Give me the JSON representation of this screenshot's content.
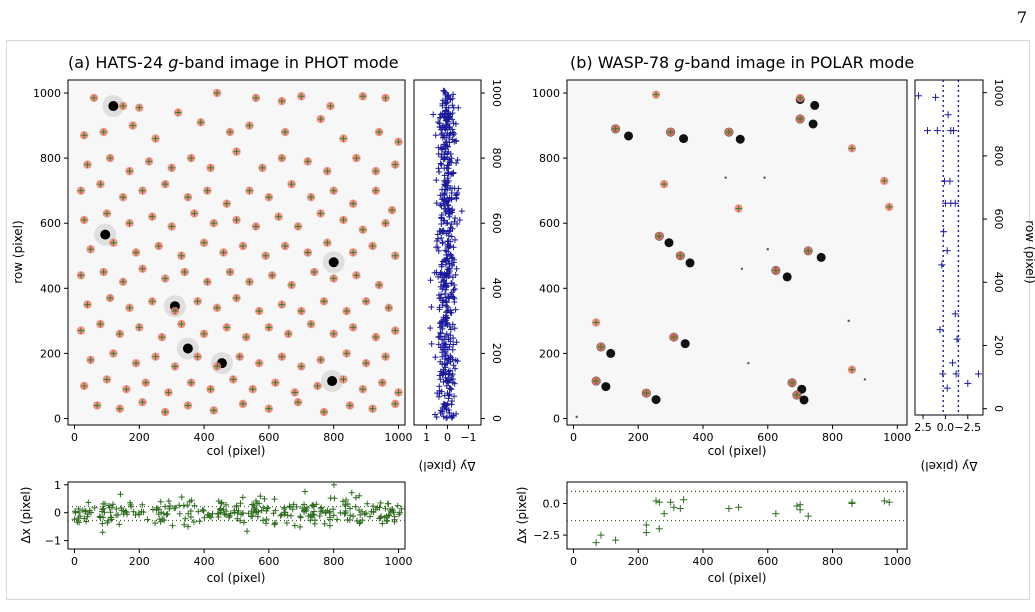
{
  "page_number": "7",
  "caption_fragment": "",
  "panels": {
    "a": {
      "title_prefix": "(a) HATS-24 ",
      "title_band": "g",
      "title_suffix": "-band image in PHOT mode"
    },
    "b": {
      "title_prefix": "(b) WASP-78 ",
      "title_band": "g",
      "title_suffix": "-band image in POLAR mode"
    }
  },
  "colors": {
    "image_background": "#f7f7f7",
    "star_core": "#000000",
    "aperture_circle": "#f08070",
    "detection_cross": "#2e7d32",
    "dy_marker": "#1a1a9a",
    "dx_marker": "#2e6b1f"
  },
  "chart_data": [
    {
      "id": "a-image",
      "type": "scatter",
      "title": "(a) HATS-24 g-band image in PHOT mode",
      "xlabel": "col (pixel)",
      "ylabel": "row (pixel)",
      "xlim": [
        -20,
        1020
      ],
      "ylim": [
        -20,
        1040
      ],
      "xticks": [
        "0",
        "200",
        "400",
        "600",
        "800",
        "1000"
      ],
      "yticks": [
        "0",
        "200",
        "400",
        "600",
        "800",
        "1000"
      ],
      "bright_stars": [
        [
          120,
          960
        ],
        [
          795,
          115
        ],
        [
          350,
          215
        ],
        [
          95,
          565
        ],
        [
          800,
          480
        ],
        [
          455,
          170
        ],
        [
          310,
          345
        ]
      ],
      "stars": [
        [
          60,
          985
        ],
        [
          150,
          960
        ],
        [
          200,
          955
        ],
        [
          320,
          940
        ],
        [
          440,
          1000
        ],
        [
          560,
          985
        ],
        [
          640,
          975
        ],
        [
          700,
          990
        ],
        [
          790,
          960
        ],
        [
          890,
          990
        ],
        [
          960,
          985
        ],
        [
          30,
          870
        ],
        [
          90,
          880
        ],
        [
          180,
          900
        ],
        [
          250,
          860
        ],
        [
          390,
          910
        ],
        [
          480,
          880
        ],
        [
          540,
          900
        ],
        [
          650,
          880
        ],
        [
          760,
          920
        ],
        [
          830,
          860
        ],
        [
          940,
          880
        ],
        [
          1000,
          850
        ],
        [
          40,
          780
        ],
        [
          110,
          800
        ],
        [
          170,
          760
        ],
        [
          230,
          790
        ],
        [
          300,
          770
        ],
        [
          360,
          800
        ],
        [
          420,
          770
        ],
        [
          500,
          820
        ],
        [
          580,
          770
        ],
        [
          640,
          800
        ],
        [
          720,
          790
        ],
        [
          780,
          760
        ],
        [
          870,
          800
        ],
        [
          930,
          760
        ],
        [
          990,
          780
        ],
        [
          20,
          700
        ],
        [
          80,
          720
        ],
        [
          150,
          680
        ],
        [
          210,
          700
        ],
        [
          280,
          720
        ],
        [
          350,
          680
        ],
        [
          410,
          700
        ],
        [
          470,
          660
        ],
        [
          540,
          700
        ],
        [
          600,
          680
        ],
        [
          670,
          720
        ],
        [
          730,
          680
        ],
        [
          800,
          700
        ],
        [
          860,
          660
        ],
        [
          930,
          700
        ],
        [
          980,
          640
        ],
        [
          30,
          610
        ],
        [
          100,
          630
        ],
        [
          170,
          600
        ],
        [
          240,
          620
        ],
        [
          300,
          590
        ],
        [
          370,
          630
        ],
        [
          430,
          600
        ],
        [
          500,
          610
        ],
        [
          560,
          590
        ],
        [
          630,
          620
        ],
        [
          690,
          590
        ],
        [
          760,
          630
        ],
        [
          830,
          610
        ],
        [
          890,
          580
        ],
        [
          960,
          600
        ],
        [
          50,
          520
        ],
        [
          120,
          540
        ],
        [
          190,
          510
        ],
        [
          260,
          530
        ],
        [
          330,
          500
        ],
        [
          400,
          540
        ],
        [
          460,
          510
        ],
        [
          520,
          530
        ],
        [
          590,
          500
        ],
        [
          650,
          530
        ],
        [
          720,
          510
        ],
        [
          780,
          540
        ],
        [
          860,
          510
        ],
        [
          920,
          530
        ],
        [
          990,
          500
        ],
        [
          20,
          440
        ],
        [
          90,
          450
        ],
        [
          150,
          420
        ],
        [
          210,
          460
        ],
        [
          280,
          430
        ],
        [
          340,
          450
        ],
        [
          410,
          420
        ],
        [
          480,
          450
        ],
        [
          540,
          420
        ],
        [
          610,
          440
        ],
        [
          670,
          410
        ],
        [
          740,
          450
        ],
        [
          800,
          430
        ],
        [
          870,
          440
        ],
        [
          940,
          410
        ],
        [
          40,
          350
        ],
        [
          110,
          370
        ],
        [
          170,
          340
        ],
        [
          240,
          360
        ],
        [
          310,
          330
        ],
        [
          380,
          360
        ],
        [
          440,
          340
        ],
        [
          500,
          370
        ],
        [
          570,
          330
        ],
        [
          640,
          350
        ],
        [
          700,
          330
        ],
        [
          770,
          360
        ],
        [
          840,
          330
        ],
        [
          900,
          360
        ],
        [
          970,
          340
        ],
        [
          20,
          270
        ],
        [
          80,
          290
        ],
        [
          140,
          260
        ],
        [
          200,
          280
        ],
        [
          270,
          250
        ],
        [
          330,
          290
        ],
        [
          400,
          260
        ],
        [
          470,
          280
        ],
        [
          530,
          250
        ],
        [
          600,
          280
        ],
        [
          660,
          260
        ],
        [
          730,
          290
        ],
        [
          800,
          260
        ],
        [
          860,
          280
        ],
        [
          930,
          250
        ],
        [
          990,
          270
        ],
        [
          50,
          180
        ],
        [
          120,
          200
        ],
        [
          190,
          170
        ],
        [
          250,
          190
        ],
        [
          310,
          160
        ],
        [
          380,
          190
        ],
        [
          440,
          160
        ],
        [
          510,
          190
        ],
        [
          570,
          170
        ],
        [
          640,
          190
        ],
        [
          700,
          160
        ],
        [
          760,
          180
        ],
        [
          840,
          200
        ],
        [
          900,
          170
        ],
        [
          960,
          190
        ],
        [
          30,
          100
        ],
        [
          100,
          120
        ],
        [
          160,
          90
        ],
        [
          220,
          110
        ],
        [
          290,
          80
        ],
        [
          360,
          110
        ],
        [
          420,
          90
        ],
        [
          490,
          120
        ],
        [
          550,
          90
        ],
        [
          620,
          110
        ],
        [
          680,
          80
        ],
        [
          750,
          100
        ],
        [
          830,
          120
        ],
        [
          890,
          90
        ],
        [
          950,
          110
        ],
        [
          1000,
          80
        ],
        [
          70,
          40
        ],
        [
          140,
          30
        ],
        [
          210,
          50
        ],
        [
          280,
          20
        ],
        [
          350,
          40
        ],
        [
          430,
          25
        ],
        [
          520,
          45
        ],
        [
          600,
          30
        ],
        [
          690,
          50
        ],
        [
          770,
          20
        ],
        [
          850,
          40
        ],
        [
          920,
          30
        ],
        [
          990,
          45
        ]
      ]
    },
    {
      "id": "a-dy",
      "type": "scatter",
      "xlabel": "Δy (pixel)",
      "xlim": [
        1.6,
        -1.6
      ],
      "ylim": [
        -20,
        1040
      ],
      "xticks": [
        "1",
        "0",
        "−1"
      ],
      "yticks": [
        "0",
        "200",
        "400",
        "600",
        "800",
        "1000"
      ]
    },
    {
      "id": "a-dx",
      "type": "scatter",
      "xlabel": "col (pixel)",
      "ylabel": "Δx (pixel)",
      "xlim": [
        -20,
        1020
      ],
      "ylim": [
        -1.3,
        1.1
      ],
      "xticks": [
        "0",
        "200",
        "400",
        "600",
        "800",
        "1000"
      ],
      "yticks": [
        "−1",
        "0",
        "1"
      ],
      "hlines": [
        -0.28,
        0.22
      ]
    },
    {
      "id": "b-image",
      "type": "scatter",
      "title": "(b) WASP-78 g-band image in POLAR mode",
      "xlabel": "col (pixel)",
      "ylabel": "row (pixel)",
      "xlim": [
        -20,
        1030
      ],
      "ylim": [
        -20,
        1040
      ],
      "xticks": [
        "0",
        "200",
        "400",
        "600",
        "800",
        "1000"
      ],
      "yticks": [
        "0",
        "200",
        "400",
        "600",
        "800",
        "1000"
      ],
      "pairs": [
        [
          [
            130,
            890
          ],
          [
            170,
            868
          ]
        ],
        [
          [
            300,
            880
          ],
          [
            340,
            860
          ]
        ],
        [
          [
            480,
            880
          ],
          [
            515,
            858
          ]
        ],
        [
          [
            725,
            515
          ],
          [
            765,
            495
          ]
        ],
        [
          [
            310,
            250
          ],
          [
            345,
            230
          ]
        ],
        [
          [
            700,
            980
          ],
          [
            745,
            962
          ]
        ],
        [
          [
            700,
            920
          ],
          [
            740,
            905
          ]
        ],
        [
          [
            265,
            560
          ],
          [
            295,
            540
          ]
        ],
        [
          [
            330,
            500
          ],
          [
            360,
            478
          ]
        ],
        [
          [
            625,
            455
          ],
          [
            660,
            435
          ]
        ],
        [
          [
            85,
            220
          ],
          [
            115,
            200
          ]
        ],
        [
          [
            70,
            115
          ],
          [
            100,
            98
          ]
        ],
        [
          [
            225,
            78
          ],
          [
            255,
            58
          ]
        ],
        [
          [
            675,
            110
          ],
          [
            705,
            90
          ]
        ],
        [
          [
            690,
            72
          ],
          [
            712,
            57
          ]
        ]
      ],
      "marked": [
        [
          255,
          995
        ],
        [
          700,
          985
        ],
        [
          700,
          920
        ],
        [
          860,
          830
        ],
        [
          960,
          730
        ],
        [
          975,
          650
        ],
        [
          510,
          645
        ],
        [
          265,
          560
        ],
        [
          330,
          500
        ],
        [
          625,
          455
        ],
        [
          725,
          515
        ],
        [
          300,
          880
        ],
        [
          130,
          890
        ],
        [
          480,
          880
        ],
        [
          310,
          250
        ],
        [
          70,
          295
        ],
        [
          85,
          220
        ],
        [
          70,
          115
        ],
        [
          225,
          78
        ],
        [
          675,
          110
        ],
        [
          690,
          72
        ],
        [
          860,
          150
        ],
        [
          280,
          720
        ]
      ],
      "faint": [
        [
          10,
          5
        ],
        [
          590,
          740
        ],
        [
          600,
          520
        ],
        [
          520,
          460
        ],
        [
          850,
          300
        ],
        [
          470,
          740
        ],
        [
          900,
          120
        ],
        [
          540,
          170
        ]
      ]
    },
    {
      "id": "b-dy",
      "type": "scatter",
      "xlabel": "Δy (pixel)",
      "xlim": [
        3.4,
        -4.2
      ],
      "ylim": [
        -20,
        1040
      ],
      "xticks": [
        "2.5",
        "0.0",
        "−2.5"
      ],
      "yticks": [
        "0",
        "200",
        "400",
        "600",
        "800",
        "1000"
      ],
      "vlines": [
        0.25,
        -1.45
      ],
      "points": [
        [
          3.0,
          990
        ],
        [
          1.1,
          985
        ],
        [
          2.0,
          880
        ],
        [
          0.9,
          880
        ],
        [
          -0.6,
          880
        ],
        [
          -0.9,
          880
        ],
        [
          -0.3,
          930
        ],
        [
          -0.5,
          720
        ],
        [
          0.1,
          720
        ],
        [
          -0.6,
          650
        ],
        [
          0.0,
          650
        ],
        [
          -1.1,
          650
        ],
        [
          0.2,
          560
        ],
        [
          -0.2,
          500
        ],
        [
          0.4,
          455
        ],
        [
          -1.1,
          300
        ],
        [
          0.6,
          250
        ],
        [
          -1.3,
          220
        ],
        [
          -0.8,
          145
        ],
        [
          0.3,
          110
        ],
        [
          -1.2,
          110
        ],
        [
          -2.5,
          80
        ],
        [
          -0.2,
          65
        ],
        [
          -3.7,
          110
        ]
      ]
    },
    {
      "id": "b-dx",
      "type": "scatter",
      "xlabel": "col (pixel)",
      "ylabel": "Δx (pixel)",
      "xlim": [
        -20,
        1030
      ],
      "ylim": [
        -3.6,
        1.7
      ],
      "xticks": [
        "0",
        "200",
        "400",
        "600",
        "800",
        "1000"
      ],
      "yticks": [
        "0.0",
        "−2.5"
      ],
      "hlines": [
        0.95,
        -1.35
      ],
      "points": [
        [
          255,
          0.2
        ],
        [
          265,
          0.1
        ],
        [
          280,
          -0.8
        ],
        [
          300,
          0.1
        ],
        [
          310,
          -0.3
        ],
        [
          330,
          -0.4
        ],
        [
          340,
          0.3
        ],
        [
          480,
          -0.4
        ],
        [
          510,
          -0.3
        ],
        [
          625,
          -0.8
        ],
        [
          690,
          -0.2
        ],
        [
          700,
          -0.5
        ],
        [
          700,
          -0.1
        ],
        [
          725,
          -1.0
        ],
        [
          860,
          0.1
        ],
        [
          860,
          0.0
        ],
        [
          960,
          0.2
        ],
        [
          975,
          0.1
        ],
        [
          70,
          -3.1
        ],
        [
          85,
          -2.5
        ],
        [
          130,
          -2.9
        ],
        [
          225,
          -2.3
        ],
        [
          225,
          -1.7
        ],
        [
          265,
          -2.0
        ]
      ]
    }
  ],
  "stats_seed": 12345
}
